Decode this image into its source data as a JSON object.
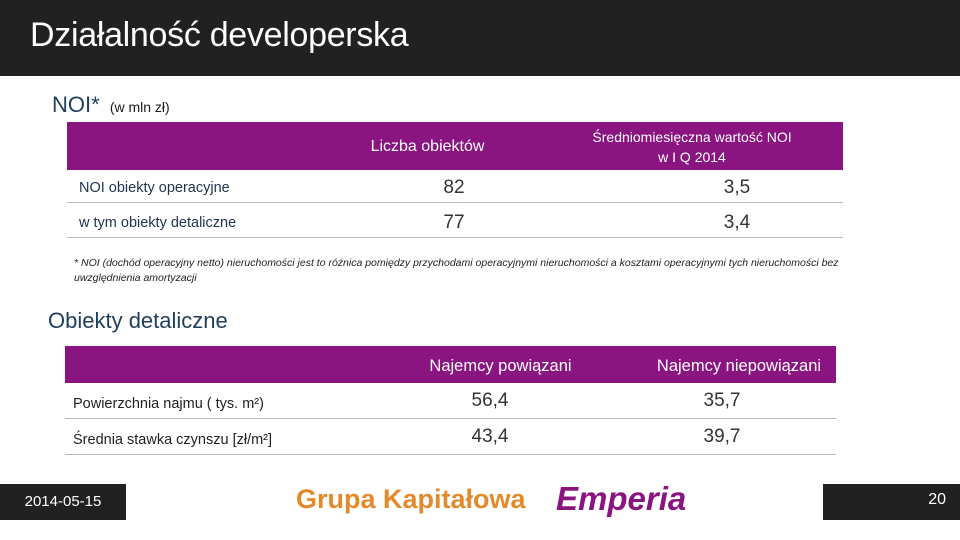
{
  "header": {
    "title": "Działalność developerska"
  },
  "noi_section": {
    "heading": "NOI*",
    "unit": "(w mln zł)",
    "table": {
      "col1": "Liczba obiektów",
      "col2_line1": "Średniomiesięczna wartość NOI",
      "col2_line2": "w I Q 2014",
      "rows": [
        {
          "label": "NOI obiekty operacyjne",
          "count": "82",
          "value": "3,5"
        },
        {
          "label": "w tym obiekty detaliczne",
          "count": "77",
          "value": "3,4"
        }
      ]
    },
    "footnote": "* NOI (dochód operacyjny netto) nieruchomości jest to różnica pomiędzy przychodami operacyjnymi nieruchomości a kosztami operacyjnymi tych nieruchomości bez uwzględnienia amortyzacji"
  },
  "retail_section": {
    "heading": "Obiekty detaliczne",
    "table": {
      "col1": "Najemcy powiązani",
      "col2": "Najemcy niepowiązani",
      "rows": [
        {
          "label": "Powierzchnia najmu ( tys. m²)",
          "v1": "56,4",
          "v2": "35,7"
        },
        {
          "label": "Średnia stawka czynszu [zł/m²]",
          "v1": "43,4",
          "v2": "39,7"
        }
      ]
    }
  },
  "footer": {
    "date": "2014-05-15",
    "logo_part1": "Grupa Kapitałowa",
    "logo_part2": "Emperia",
    "page_number": "20"
  },
  "colors": {
    "accent": "#8a1580",
    "logo_orange": "#e38b2c",
    "bar": "#212121"
  }
}
